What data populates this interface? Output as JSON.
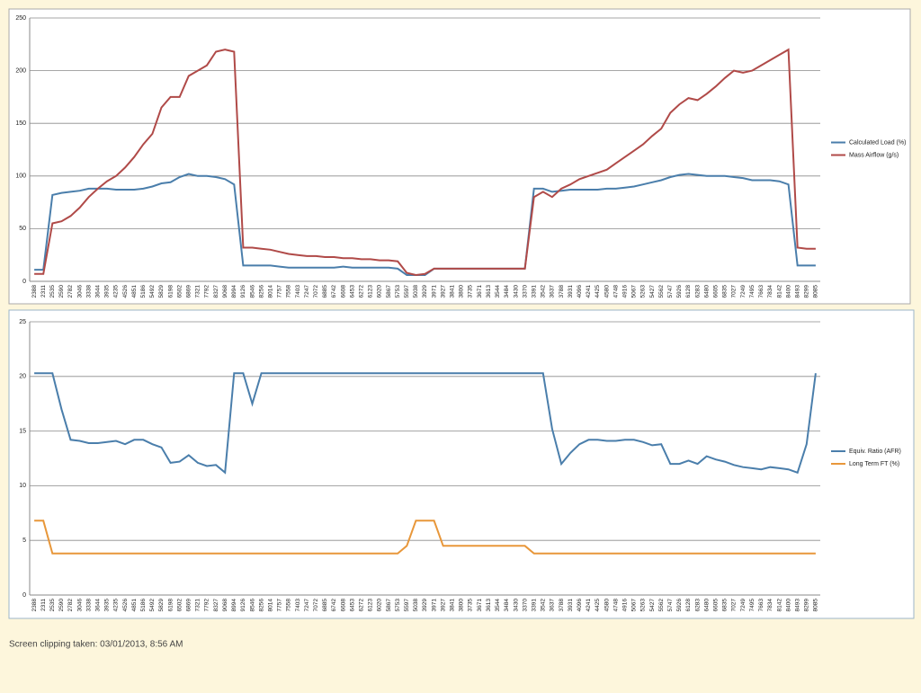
{
  "chart_data": [
    {
      "type": "line",
      "legend": "right",
      "grid": true,
      "ylim": [
        0,
        250
      ],
      "yticks": [
        0,
        50,
        100,
        150,
        200,
        250
      ],
      "categories": [
        "2388",
        "2311",
        "2535",
        "2590",
        "2782",
        "3046",
        "3338",
        "3644",
        "3935",
        "4235",
        "4526",
        "4851",
        "5186",
        "5492",
        "5829",
        "6198",
        "6502",
        "6869",
        "7321",
        "7792",
        "8327",
        "9068",
        "8994",
        "9126",
        "8546",
        "8256",
        "8014",
        "7757",
        "7558",
        "7403",
        "7247",
        "7072",
        "6885",
        "6742",
        "6608",
        "6453",
        "6272",
        "6123",
        "6020",
        "5867",
        "5753",
        "5597",
        "5038",
        "3929",
        "3971",
        "3927",
        "3841",
        "3800",
        "3735",
        "3671",
        "3613",
        "3544",
        "3484",
        "3430",
        "3370",
        "3391",
        "3542",
        "3637",
        "3788",
        "3931",
        "4096",
        "4241",
        "4425",
        "4580",
        "4748",
        "4916",
        "5067",
        "5263",
        "5427",
        "5562",
        "5747",
        "5926",
        "6128",
        "6283",
        "6480",
        "6605",
        "6835",
        "7027",
        "7249",
        "7495",
        "7663",
        "7834",
        "8142",
        "8400",
        "8493",
        "8299",
        "8085"
      ],
      "series": [
        {
          "name": "Calculated Load (%)",
          "color": "#4a7eab",
          "values": [
            11,
            11,
            82,
            84,
            85,
            86,
            88,
            88,
            88,
            87,
            87,
            87,
            88,
            90,
            93,
            94,
            99,
            102,
            100,
            100,
            99,
            97,
            92,
            15,
            15,
            15,
            15,
            14,
            13,
            13,
            13,
            13,
            13,
            13,
            14,
            13,
            13,
            13,
            13,
            13,
            12,
            6,
            6,
            6,
            12,
            12,
            12,
            12,
            12,
            12,
            12,
            12,
            12,
            12,
            12,
            88,
            88,
            85,
            86,
            87,
            87,
            87,
            87,
            88,
            88,
            89,
            90,
            92,
            94,
            96,
            99,
            101,
            102,
            101,
            100,
            100,
            100,
            99,
            98,
            96,
            96,
            96,
            95,
            92,
            15,
            15,
            15
          ]
        },
        {
          "name": "Mass Airflow (g/s)",
          "color": "#b04a48",
          "values": [
            7,
            7,
            55,
            57,
            62,
            70,
            80,
            88,
            95,
            100,
            108,
            118,
            130,
            140,
            165,
            175,
            175,
            195,
            200,
            205,
            218,
            220,
            218,
            32,
            32,
            31,
            30,
            28,
            26,
            25,
            24,
            24,
            23,
            23,
            22,
            22,
            21,
            21,
            20,
            20,
            19,
            8,
            6,
            7,
            12,
            12,
            12,
            12,
            12,
            12,
            12,
            12,
            12,
            12,
            12,
            80,
            85,
            80,
            88,
            92,
            97,
            100,
            103,
            106,
            112,
            118,
            124,
            130,
            138,
            145,
            160,
            168,
            174,
            172,
            178,
            185,
            193,
            200,
            198,
            200,
            205,
            210,
            215,
            220,
            32,
            31,
            31
          ]
        }
      ]
    },
    {
      "type": "line",
      "legend": "right",
      "grid": true,
      "ylim": [
        0,
        25
      ],
      "yticks": [
        0,
        5,
        10,
        15,
        20,
        25
      ],
      "categories": [
        "2388",
        "2311",
        "2535",
        "2590",
        "2782",
        "3046",
        "3338",
        "3644",
        "3935",
        "4235",
        "4526",
        "4851",
        "5186",
        "5492",
        "5829",
        "6198",
        "6502",
        "6869",
        "7321",
        "7792",
        "8327",
        "9068",
        "8994",
        "9126",
        "8546",
        "8256",
        "8014",
        "7757",
        "7558",
        "7403",
        "7247",
        "7072",
        "6885",
        "6742",
        "6608",
        "6453",
        "6272",
        "6123",
        "6020",
        "5867",
        "5753",
        "5597",
        "5038",
        "3929",
        "3971",
        "3927",
        "3841",
        "3800",
        "3735",
        "3671",
        "3613",
        "3544",
        "3484",
        "3430",
        "3370",
        "3391",
        "3542",
        "3637",
        "3788",
        "3931",
        "4096",
        "4241",
        "4425",
        "4580",
        "4748",
        "4916",
        "5067",
        "5263",
        "5427",
        "5562",
        "5747",
        "5926",
        "6128",
        "6283",
        "6480",
        "6605",
        "6835",
        "7027",
        "7249",
        "7495",
        "7663",
        "7834",
        "8142",
        "8400",
        "8493",
        "8299",
        "8085"
      ],
      "series": [
        {
          "name": "Equiv. Ratio (AFR)",
          "color": "#4a7eab",
          "values": [
            20.3,
            20.3,
            20.3,
            17,
            14.2,
            14.1,
            13.9,
            13.9,
            14.0,
            14.1,
            13.8,
            14.2,
            14.2,
            13.8,
            13.5,
            12.1,
            12.2,
            12.8,
            12.1,
            11.8,
            11.9,
            11.2,
            20.3,
            20.3,
            17.5,
            20.3,
            20.3,
            20.3,
            20.3,
            20.3,
            20.3,
            20.3,
            20.3,
            20.3,
            20.3,
            20.3,
            20.3,
            20.3,
            20.3,
            20.3,
            20.3,
            20.3,
            20.3,
            20.3,
            20.3,
            20.3,
            20.3,
            20.3,
            20.3,
            20.3,
            20.3,
            20.3,
            20.3,
            20.3,
            20.3,
            20.3,
            20.3,
            15.2,
            12.0,
            13.0,
            13.8,
            14.2,
            14.2,
            14.1,
            14.1,
            14.2,
            14.2,
            14.0,
            13.7,
            13.8,
            12.0,
            12.0,
            12.3,
            12.0,
            12.7,
            12.4,
            12.2,
            11.9,
            11.7,
            11.6,
            11.5,
            11.7,
            11.6,
            11.5,
            11.2,
            13.8,
            20.3
          ]
        },
        {
          "name": "Long Term FT (%)",
          "color": "#e8973a",
          "values": [
            6.8,
            6.8,
            3.8,
            3.8,
            3.8,
            3.8,
            3.8,
            3.8,
            3.8,
            3.8,
            3.8,
            3.8,
            3.8,
            3.8,
            3.8,
            3.8,
            3.8,
            3.8,
            3.8,
            3.8,
            3.8,
            3.8,
            3.8,
            3.8,
            3.8,
            3.8,
            3.8,
            3.8,
            3.8,
            3.8,
            3.8,
            3.8,
            3.8,
            3.8,
            3.8,
            3.8,
            3.8,
            3.8,
            3.8,
            3.8,
            3.8,
            4.5,
            6.8,
            6.8,
            6.8,
            4.5,
            4.5,
            4.5,
            4.5,
            4.5,
            4.5,
            4.5,
            4.5,
            4.5,
            4.5,
            3.8,
            3.8,
            3.8,
            3.8,
            3.8,
            3.8,
            3.8,
            3.8,
            3.8,
            3.8,
            3.8,
            3.8,
            3.8,
            3.8,
            3.8,
            3.8,
            3.8,
            3.8,
            3.8,
            3.8,
            3.8,
            3.8,
            3.8,
            3.8,
            3.8,
            3.8,
            3.8,
            3.8,
            3.8,
            3.8,
            3.8,
            3.8
          ]
        }
      ]
    }
  ],
  "caption": "Screen clipping taken: 03/01/2013, 8:56 AM"
}
